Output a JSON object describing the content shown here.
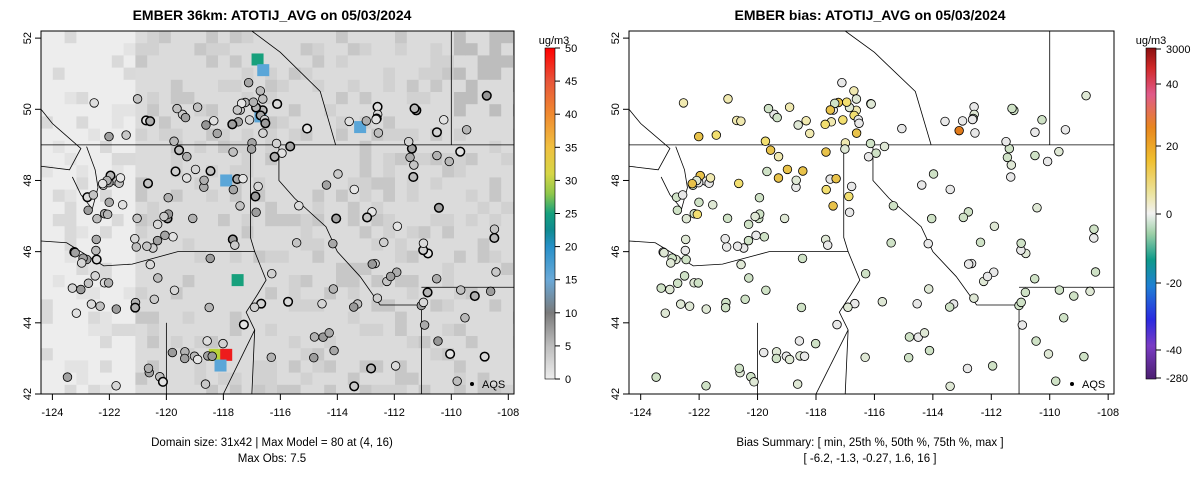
{
  "chart_data": [
    {
      "type": "heatmap",
      "title": "EMBER 36km: ATOTIJ_AVG on 05/03/2024",
      "x_ticks": [
        "-124",
        "-122",
        "-120",
        "-118",
        "-116",
        "-114",
        "-112",
        "-110",
        "-108"
      ],
      "x_tick_values": [
        -124,
        -122,
        -120,
        -118,
        -116,
        -114,
        -112,
        -110,
        -108
      ],
      "y_ticks": [
        "42",
        "44",
        "46",
        "48",
        "50",
        "52"
      ],
      "y_tick_values": [
        42,
        44,
        46,
        48,
        50,
        52
      ],
      "xlim": [
        -124.4,
        -107.8
      ],
      "ylim": [
        42.0,
        52.2
      ],
      "colorbar": {
        "unit": "ug/m3",
        "labels": [
          "0",
          "5",
          "10",
          "15",
          "20",
          "25",
          "30",
          "35",
          "40",
          "45",
          "50"
        ],
        "values": [
          0,
          5,
          10,
          15,
          20,
          25,
          30,
          35,
          40,
          45,
          50
        ]
      },
      "highlight_cells": [
        {
          "lon": -118.3,
          "lat": 43.1,
          "value": 25
        },
        {
          "lon": -117.9,
          "lat": 43.1,
          "value": 50
        },
        {
          "lon": -118.1,
          "lat": 42.8,
          "value": 16
        },
        {
          "lon": -117.5,
          "lat": 45.2,
          "value": 20
        },
        {
          "lon": -116.8,
          "lat": 51.4,
          "value": 18
        },
        {
          "lon": -116.6,
          "lat": 51.1,
          "value": 14
        },
        {
          "lon": -116.7,
          "lat": 49.8,
          "value": 13
        },
        {
          "lon": -117.9,
          "lat": 48.0,
          "value": 11
        },
        {
          "lon": -113.2,
          "lat": 49.5,
          "value": 11
        }
      ],
      "obs_label": "AQS",
      "footer_line1": "Domain size: 31x42 | Max Model = 80 at (4, 16)",
      "footer_line2": "Max Obs: 7.5"
    },
    {
      "type": "scatter",
      "title": "EMBER bias: ATOTIJ_AVG on 05/03/2024",
      "x_ticks": [
        "-124",
        "-122",
        "-120",
        "-118",
        "-116",
        "-114",
        "-112",
        "-110",
        "-108"
      ],
      "x_tick_values": [
        -124,
        -122,
        -120,
        -118,
        -116,
        -114,
        -112,
        -110,
        -108
      ],
      "y_ticks": [
        "42",
        "44",
        "46",
        "48",
        "50",
        "52"
      ],
      "y_tick_values": [
        42,
        44,
        46,
        48,
        50,
        52
      ],
      "xlim": [
        -124.4,
        -107.8
      ],
      "ylim": [
        42.0,
        52.2
      ],
      "colorbar": {
        "unit": "ug/m3",
        "labels": [
          "3000",
          "40",
          "20",
          "0",
          "-20",
          "-40",
          "-280"
        ]
      },
      "obs_label": "AQS",
      "footer_line1": "Bias Summary: [ min, 25th %, 50th %, 75th %, max ]",
      "footer_line2": "[ -6.2,   -1.3,   -0.27,   1.6,   16 ]",
      "bias_summary": {
        "min": -6.2,
        "p25": -1.3,
        "p50": -0.27,
        "p75": 1.6,
        "max": 16
      }
    }
  ]
}
